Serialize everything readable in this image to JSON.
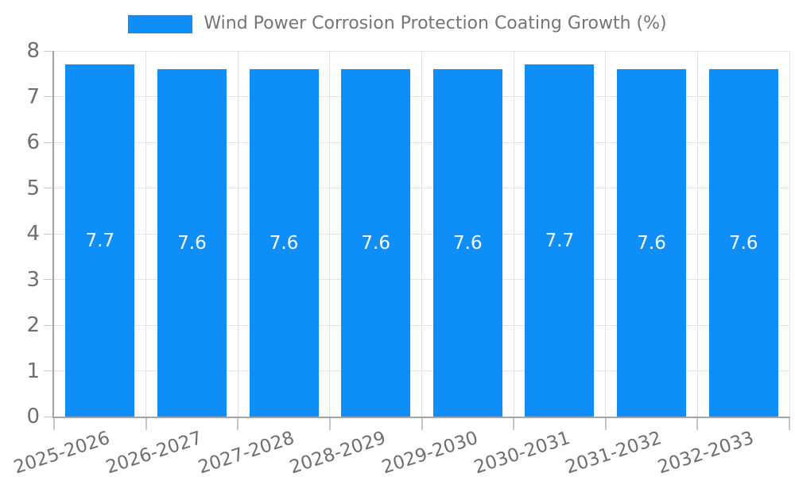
{
  "chart_data": {
    "type": "bar",
    "title": "Wind Power Corrosion Protection Coating Growth (%)",
    "legend": {
      "label": "Wind Power Corrosion Protection Coating Growth (%)",
      "position": "top"
    },
    "categories": [
      "2025-2026",
      "2026-2027",
      "2027-2028",
      "2028-2029",
      "2029-2030",
      "2030-2031",
      "2031-2032",
      "2032-2033"
    ],
    "values": [
      7.7,
      7.6,
      7.6,
      7.6,
      7.6,
      7.7,
      7.6,
      7.6
    ],
    "value_labels": [
      "7.7",
      "7.6",
      "7.6",
      "7.6",
      "7.6",
      "7.7",
      "7.6",
      "7.6"
    ],
    "xlabel": "",
    "ylabel": "",
    "ylim": [
      0,
      8
    ],
    "yticks": [
      0,
      1,
      2,
      3,
      4,
      5,
      6,
      7,
      8
    ],
    "grid": true,
    "x_tick_rotation_deg": -18,
    "colors": {
      "bar": "#0d8ef9",
      "value_label": "#ffffff",
      "grid": "#e3e3e3",
      "tick_mark": "#c6c6c6",
      "axis": "#a3a3a3",
      "tick_text": "#6f6f6f",
      "legend_text": "#757575",
      "background": "#ffffff"
    }
  }
}
